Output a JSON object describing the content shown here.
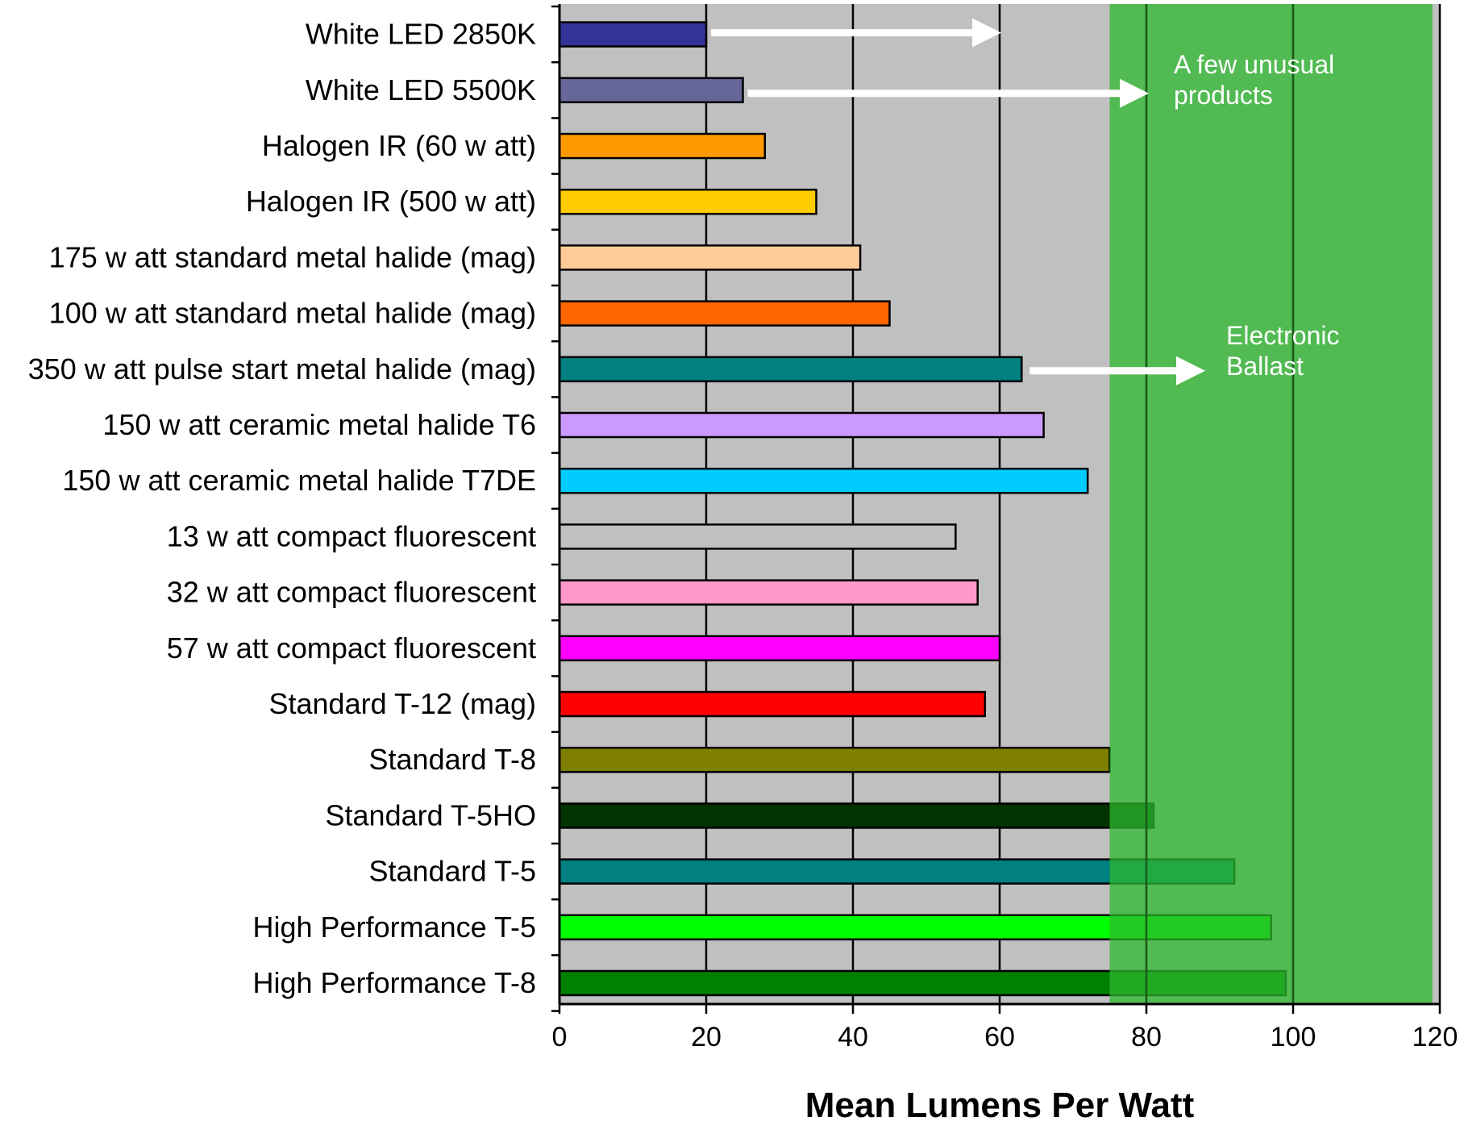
{
  "chart_data": {
    "type": "bar",
    "orientation": "horizontal",
    "xlabel": "Mean Lumens Per Watt",
    "xlim": [
      0,
      120
    ],
    "xticks": [
      "0",
      "20",
      "40",
      "60",
      "80",
      "100",
      "120"
    ],
    "grid": true,
    "highlight_region": {
      "from": 75,
      "to": 119,
      "color": "#2eb82e"
    },
    "plot_background": "#c0c0c0",
    "bars": [
      {
        "label": "White LED 2850K",
        "value": 20,
        "color": "#333399"
      },
      {
        "label": "White LED 5500K",
        "value": 25,
        "color": "#666699"
      },
      {
        "label": "Halogen IR (60 w att)",
        "value": 28,
        "color": "#ff9900"
      },
      {
        "label": "Halogen IR (500 w att)",
        "value": 35,
        "color": "#ffcc00"
      },
      {
        "label": "175 w att standard metal halide (mag)",
        "value": 41,
        "color": "#ffcc99"
      },
      {
        "label": "100 w att standard metal halide (mag)",
        "value": 45,
        "color": "#ff6600"
      },
      {
        "label": "350 w att pulse start metal halide (mag)",
        "value": 63,
        "color": "#008080"
      },
      {
        "label": "150 w att ceramic metal halide T6",
        "value": 66,
        "color": "#cc99ff"
      },
      {
        "label": "150 w att ceramic metal halide T7DE",
        "value": 72,
        "color": "#00ccff"
      },
      {
        "label": "13 w att compact fluorescent",
        "value": 54,
        "color": "#c0c0c0"
      },
      {
        "label": "32 w att compact fluorescent",
        "value": 57,
        "color": "#ff99cc"
      },
      {
        "label": "57 w att compact fluorescent",
        "value": 60,
        "color": "#ff00ff"
      },
      {
        "label": "Standard T-12 (mag)",
        "value": 58,
        "color": "#ff0000"
      },
      {
        "label": "Standard T-8",
        "value": 75,
        "color": "#808000"
      },
      {
        "label": "Standard T-5HO",
        "value": 81,
        "color": "#003300"
      },
      {
        "label": "Standard T-5",
        "value": 92,
        "color": "#008080"
      },
      {
        "label": "High Performance T-5",
        "value": 97,
        "color": "#00ff00"
      },
      {
        "label": "High Performance T-8",
        "value": 99,
        "color": "#008000"
      }
    ],
    "annotations": [
      {
        "text_lines": [
          "A few unusual",
          "products"
        ]
      },
      {
        "text_lines": [
          "Electronic",
          "Ballast"
        ]
      }
    ]
  }
}
